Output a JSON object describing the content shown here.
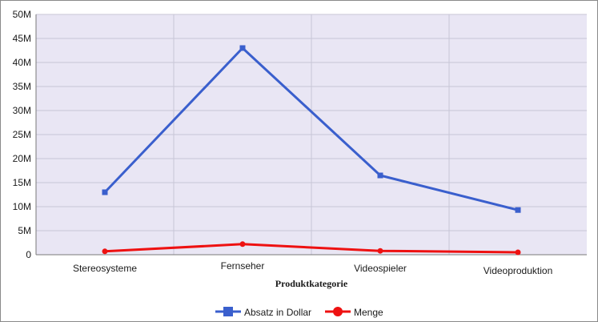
{
  "chart_data": {
    "type": "line",
    "title": "",
    "xlabel": "Produktkategorie",
    "ylabel": "",
    "categories": [
      "Stereosysteme",
      "Fernseher",
      "Videospieler",
      "Videoproduktion"
    ],
    "y_ticks": [
      "0",
      "5M",
      "10M",
      "15M",
      "20M",
      "25M",
      "30M",
      "35M",
      "40M",
      "45M",
      "50M"
    ],
    "ylim": [
      0,
      50000000
    ],
    "grid": true,
    "legend_position": "bottom",
    "series": [
      {
        "name": "Absatz in Dollar",
        "color": "#3a5fcd",
        "marker": "square",
        "values": [
          13000000,
          43000000,
          16500000,
          9300000
        ]
      },
      {
        "name": "Menge",
        "color": "#ee1111",
        "marker": "circle",
        "values": [
          700000,
          2200000,
          800000,
          500000
        ]
      }
    ],
    "plot_background": "#e9e6f4",
    "grid_color": "#c8c6d6"
  }
}
